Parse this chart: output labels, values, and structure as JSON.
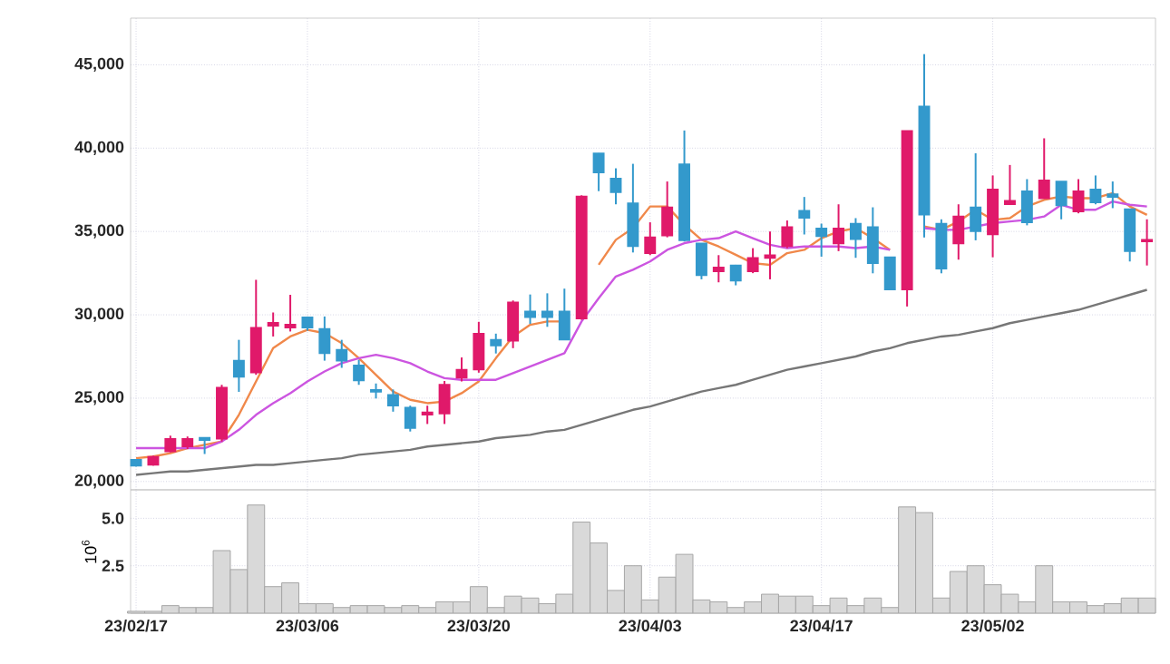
{
  "chart_data": [
    {
      "type": "candlestick",
      "categories": [
        null,
        null,
        null,
        null,
        null,
        null,
        null,
        null,
        null,
        null,
        null,
        null,
        null,
        null,
        null,
        null,
        null,
        null,
        null,
        null,
        null,
        null,
        null,
        null,
        null,
        null,
        null,
        null,
        null,
        null,
        null,
        null,
        null,
        null,
        null,
        null,
        null,
        null,
        null,
        null,
        null,
        null,
        null,
        null,
        null,
        null,
        null,
        null,
        null,
        null,
        null,
        null,
        null,
        null,
        null,
        null,
        null,
        null,
        null,
        null
      ],
      "ohlc": [
        [
          21300,
          21350,
          20900,
          20950
        ],
        [
          21000,
          21550,
          20950,
          21480
        ],
        [
          21800,
          22750,
          21750,
          22560
        ],
        [
          22100,
          22700,
          21950,
          22560
        ],
        [
          22630,
          22650,
          21650,
          22480
        ],
        [
          22560,
          25800,
          22400,
          25630
        ],
        [
          27250,
          28500,
          25380,
          26280
        ],
        [
          26540,
          32100,
          26400,
          29230
        ],
        [
          29340,
          30140,
          28700,
          29520
        ],
        [
          29230,
          31200,
          29000,
          29410
        ],
        [
          29850,
          29900,
          29050,
          29230
        ],
        [
          29160,
          29900,
          27250,
          27690
        ],
        [
          27900,
          28500,
          26820,
          27250
        ],
        [
          26960,
          27300,
          25800,
          26060
        ],
        [
          25500,
          25880,
          24980,
          25380
        ],
        [
          25200,
          25520,
          24190,
          24550
        ],
        [
          24440,
          24550,
          23000,
          23210
        ],
        [
          24000,
          24550,
          23450,
          24150
        ],
        [
          24080,
          26030,
          23450,
          25810
        ],
        [
          26230,
          27440,
          26000,
          26710
        ],
        [
          26710,
          29580,
          26530,
          28870
        ],
        [
          28510,
          28870,
          27680,
          28150
        ],
        [
          28440,
          30860,
          28000,
          30750
        ],
        [
          30210,
          31220,
          29460,
          29850
        ],
        [
          30200,
          31290,
          29280,
          29850
        ],
        [
          30210,
          31570,
          28510,
          28510
        ],
        [
          29770,
          37170,
          29700,
          37100
        ],
        [
          39690,
          39700,
          37420,
          38530
        ],
        [
          38180,
          38790,
          36630,
          37350
        ],
        [
          36690,
          39060,
          33740,
          34110
        ],
        [
          33690,
          35550,
          33580,
          34650
        ],
        [
          34750,
          38000,
          34650,
          36450
        ],
        [
          39040,
          41060,
          34400,
          34470
        ],
        [
          34280,
          34300,
          32130,
          32370
        ],
        [
          32610,
          33580,
          31950,
          32850
        ],
        [
          32960,
          33000,
          31770,
          32050
        ],
        [
          32610,
          34000,
          32500,
          33410
        ],
        [
          33410,
          35000,
          32130,
          33580
        ],
        [
          34110,
          35660,
          34000,
          35260
        ],
        [
          36250,
          37070,
          34820,
          35820
        ],
        [
          35180,
          35470,
          33490,
          34710
        ],
        [
          34280,
          36630,
          33820,
          35180
        ],
        [
          35470,
          35800,
          33420,
          34530
        ],
        [
          35260,
          36450,
          32490,
          33090
        ],
        [
          33450,
          33450,
          31520,
          31520
        ],
        [
          31520,
          41040,
          30500,
          41040
        ],
        [
          42500,
          45640,
          34640,
          36010
        ],
        [
          35470,
          35730,
          32490,
          32770
        ],
        [
          34280,
          36630,
          33310,
          35910
        ],
        [
          36450,
          39690,
          34470,
          35010
        ],
        [
          34820,
          38360,
          33450,
          37530
        ],
        [
          36630,
          38990,
          36630,
          36850
        ],
        [
          37420,
          38140,
          35370,
          35550
        ],
        [
          36990,
          40590,
          36990,
          38070
        ],
        [
          38000,
          38000,
          35730,
          36560
        ],
        [
          36200,
          38140,
          36090,
          37420
        ],
        [
          37530,
          38360,
          36630,
          36740
        ],
        [
          37240,
          38000,
          36400,
          37070
        ],
        [
          36340,
          36340,
          33200,
          33820
        ],
        [
          34400,
          35730,
          32960,
          34500
        ]
      ],
      "colors": [
        "#3399cc",
        "#e0196a",
        "#e0196a",
        "#e0196a",
        "#3399cc",
        "#e0196a",
        "#3399cc",
        "#e0196a",
        "#e0196a",
        "#e0196a",
        "#3399cc",
        "#3399cc",
        "#3399cc",
        "#3399cc",
        "#3399cc",
        "#3399cc",
        "#3399cc",
        "#e0196a",
        "#e0196a",
        "#e0196a",
        "#e0196a",
        "#3399cc",
        "#e0196a",
        "#3399cc",
        "#3399cc",
        "#3399cc",
        "#e0196a",
        "#3399cc",
        "#3399cc",
        "#3399cc",
        "#e0196a",
        "#e0196a",
        "#3399cc",
        "#3399cc",
        "#e0196a",
        "#3399cc",
        "#e0196a",
        "#e0196a",
        "#e0196a",
        "#3399cc",
        "#3399cc",
        "#e0196a",
        "#3399cc",
        "#3399cc",
        "#3399cc",
        "#e0196a",
        "#3399cc",
        "#3399cc",
        "#e0196a",
        "#3399cc",
        "#e0196a",
        "#e0196a",
        "#3399cc",
        "#e0196a",
        "#3399cc",
        "#e0196a",
        "#3399cc",
        "#3399cc",
        "#3399cc",
        "#e0196a"
      ],
      "series": [
        {
          "type": "line",
          "color": "#f0884a",
          "values": [
            21400,
            21500,
            21700,
            22000,
            22200,
            22400,
            24000,
            26000,
            28000,
            28700,
            29100,
            28900,
            28300,
            27400,
            26400,
            25400,
            24900,
            24700,
            24800,
            25300,
            26000,
            27400,
            28700,
            29400,
            29600,
            29600,
            null,
            33000,
            34500,
            35200,
            36500,
            36500,
            35400,
            34500,
            34100,
            33600,
            33100,
            33000,
            33700,
            33900,
            34600,
            35000,
            35200,
            34600,
            33900,
            null,
            35300,
            35100,
            35600,
            36300,
            35700,
            35800,
            36500,
            36900,
            37100,
            37000,
            37000,
            37300,
            36500,
            36000
          ]
        },
        {
          "type": "line",
          "color": "#cc55e0",
          "values": [
            22000,
            22000,
            22000,
            22000,
            22000,
            22400,
            23100,
            24000,
            24700,
            25300,
            26000,
            26600,
            27100,
            27400,
            27600,
            27400,
            27100,
            26600,
            26200,
            26100,
            26100,
            26100,
            26500,
            26900,
            27300,
            27700,
            29600,
            31000,
            32300,
            32700,
            33200,
            33900,
            34300,
            34500,
            34600,
            35000,
            34600,
            34200,
            34000,
            34100,
            34100,
            34100,
            34000,
            34100,
            33900,
            null,
            35200,
            35100,
            35100,
            35300,
            35500,
            35600,
            35700,
            35900,
            36600,
            36300,
            36300,
            36800,
            36600,
            36500
          ]
        },
        {
          "type": "line",
          "color": "#777777",
          "values": [
            20400,
            20500,
            20600,
            20600,
            20700,
            20800,
            20900,
            21000,
            21000,
            21100,
            21200,
            21300,
            21400,
            21600,
            21700,
            21800,
            21900,
            22100,
            22200,
            22300,
            22400,
            22600,
            22700,
            22800,
            23000,
            23100,
            23400,
            23700,
            24000,
            24300,
            24500,
            24800,
            25100,
            25400,
            25600,
            25800,
            26100,
            26400,
            26700,
            26900,
            27100,
            27300,
            27500,
            27800,
            28000,
            28300,
            28500,
            28700,
            28800,
            29000,
            29200,
            29500,
            29700,
            29900,
            30100,
            30300,
            30600,
            30900,
            31200,
            31500
          ]
        }
      ],
      "ylim": [
        19500,
        47800
      ],
      "yticks": [
        {
          "value": 20000,
          "label": "20,000"
        },
        {
          "value": 25000,
          "label": "25,000"
        },
        {
          "value": 30000,
          "label": "30,000"
        },
        {
          "value": 35000,
          "label": "35,000"
        },
        {
          "value": 40000,
          "label": "40,000"
        },
        {
          "value": 45000,
          "label": "45,000"
        }
      ],
      "grid": true,
      "tick_labels": "y"
    },
    {
      "type": "bar",
      "categories": [
        "23/02/17",
        null,
        null,
        null,
        null,
        null,
        null,
        null,
        null,
        null,
        "23/03/06",
        null,
        null,
        null,
        null,
        null,
        null,
        null,
        null,
        null,
        "23/03/20",
        null,
        null,
        null,
        null,
        null,
        null,
        null,
        null,
        null,
        "23/04/03",
        null,
        null,
        null,
        null,
        null,
        null,
        null,
        null,
        null,
        "23/04/17",
        null,
        null,
        null,
        null,
        null,
        null,
        null,
        null,
        null,
        "23/05/02",
        null,
        null,
        null,
        null,
        null,
        null,
        null,
        null,
        null
      ],
      "values": [
        0.1,
        0.1,
        0.4,
        0.3,
        0.3,
        3.3,
        2.3,
        5.7,
        1.4,
        1.6,
        0.5,
        0.5,
        0.3,
        0.4,
        0.4,
        0.3,
        0.4,
        0.3,
        0.6,
        0.6,
        1.4,
        0.3,
        0.9,
        0.8,
        0.5,
        1.0,
        4.8,
        3.7,
        1.2,
        2.5,
        0.7,
        1.9,
        3.1,
        0.7,
        0.6,
        0.3,
        0.6,
        1.0,
        0.9,
        0.9,
        0.4,
        0.8,
        0.4,
        0.8,
        0.3,
        5.6,
        5.3,
        0.8,
        2.2,
        2.5,
        1.5,
        1.0,
        0.6,
        2.5,
        0.6,
        0.6,
        0.4,
        0.5,
        0.8,
        0.8
      ],
      "color": "#d9d9d9",
      "ylabel": "10$^{6}$",
      "ylim": [
        0,
        6.5
      ],
      "yticks": [
        {
          "value": 2.5,
          "label": "2.5"
        },
        {
          "value": 5,
          "label": "5.0"
        }
      ],
      "grid": true
    }
  ]
}
